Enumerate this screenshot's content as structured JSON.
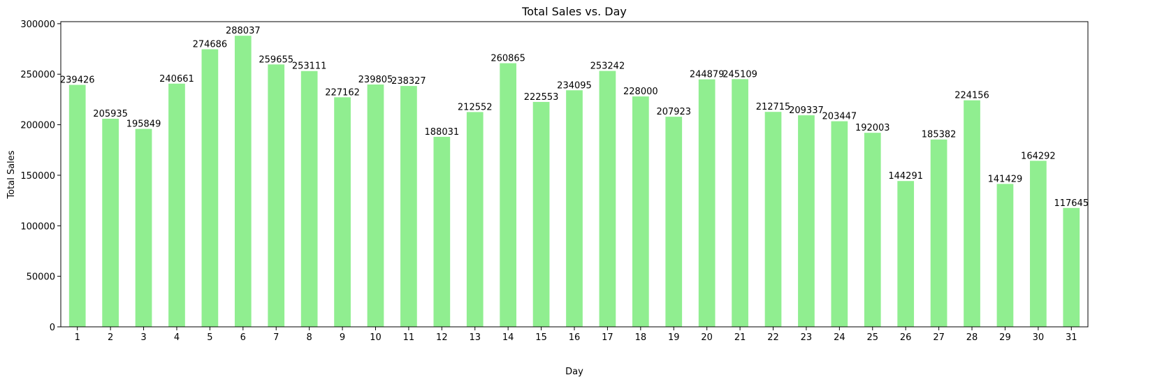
{
  "chart_data": {
    "type": "bar",
    "title": "Total Sales vs. Day",
    "xlabel": "Day",
    "ylabel": "Total Sales",
    "categories": [
      "1",
      "2",
      "3",
      "4",
      "5",
      "6",
      "7",
      "8",
      "9",
      "10",
      "11",
      "12",
      "13",
      "14",
      "15",
      "16",
      "17",
      "18",
      "19",
      "20",
      "21",
      "22",
      "23",
      "24",
      "25",
      "26",
      "27",
      "28",
      "29",
      "30",
      "31"
    ],
    "values": [
      239426,
      205935,
      195849,
      240661,
      274686,
      288037,
      259655,
      253111,
      227162,
      239805,
      238327,
      188031,
      212552,
      260865,
      222553,
      234095,
      253242,
      228000,
      207923,
      244879,
      245109,
      212715,
      209337,
      203447,
      192003,
      144291,
      185382,
      224156,
      141429,
      164292,
      117645
    ],
    "data_labels": [
      "239426",
      "205935",
      "195849",
      "240661",
      "274686",
      "288037",
      "259655",
      "253111",
      "227162",
      "239805",
      "238327",
      "188031",
      "212552",
      "260865",
      "222553",
      "234095",
      "253242",
      "228000",
      "207923",
      "244879",
      "245109",
      "212715",
      "209337",
      "203447",
      "192003",
      "144291",
      "185382",
      "224156",
      "141429",
      "164292",
      "117645"
    ],
    "ylim": [
      0,
      302000
    ],
    "yticks": [
      0,
      50000,
      100000,
      150000,
      200000,
      250000,
      300000
    ],
    "ytick_labels": [
      "0",
      "50000",
      "100000",
      "150000",
      "200000",
      "250000",
      "300000"
    ],
    "bar_color": "#90ee90",
    "grid": false,
    "legend": "none"
  }
}
